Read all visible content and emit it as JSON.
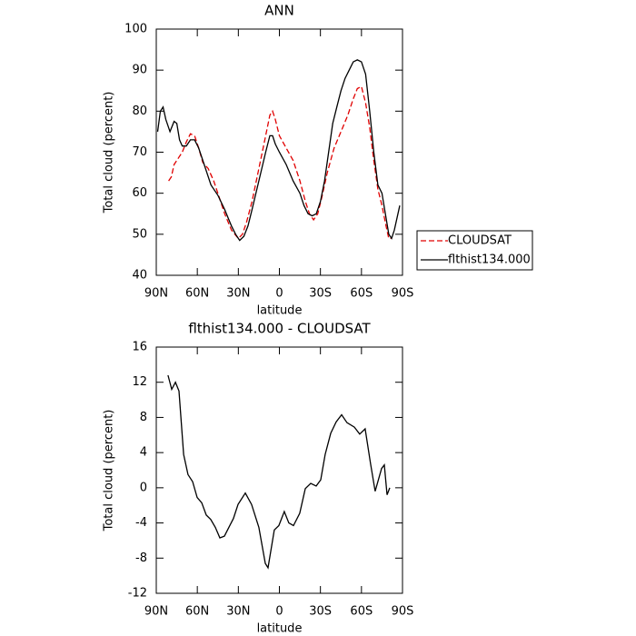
{
  "chart_data": [
    {
      "type": "line",
      "title": "ANN",
      "x_label": "latitude",
      "y_label": "Total cloud (percent)",
      "xlim": [
        90,
        -90
      ],
      "xticks": [
        {
          "value": 90,
          "label": "90N"
        },
        {
          "value": 60,
          "label": "60N"
        },
        {
          "value": 30,
          "label": "30N"
        },
        0,
        {
          "value": -30,
          "label": "30S"
        },
        {
          "value": -60,
          "label": "60S"
        },
        {
          "value": -90,
          "label": "90S"
        }
      ],
      "ylim": [
        40,
        100
      ],
      "yticks": [
        40,
        50,
        60,
        70,
        80,
        90,
        100
      ],
      "legend": "outside right",
      "series": [
        {
          "name": "CLOUDSAT",
          "color": "#e00000",
          "dash": true,
          "x": [
            81,
            79,
            77,
            74,
            71,
            68,
            65,
            62,
            59,
            56,
            52,
            48,
            44,
            40,
            35,
            30,
            27,
            24,
            20,
            15,
            10,
            7,
            5,
            3,
            0,
            -5,
            -10,
            -15,
            -19,
            -22,
            -25,
            -28,
            -31,
            -35,
            -40,
            -45,
            -50,
            -54,
            -57,
            -60,
            -63,
            -66,
            -69,
            -72,
            -75,
            -78,
            -80,
            -82
          ],
          "values": [
            63,
            64,
            67,
            68.5,
            70,
            72.5,
            74.5,
            74,
            71,
            67.5,
            66,
            63,
            59,
            55,
            51,
            49,
            50,
            53,
            58,
            66,
            74,
            79,
            80,
            78,
            74,
            71,
            68,
            63,
            58,
            55,
            53.5,
            55,
            59,
            65,
            71,
            75,
            79,
            83,
            85.5,
            86,
            82,
            76,
            68,
            61,
            57,
            52,
            49,
            49
          ]
        },
        {
          "name": "flthist134.000",
          "color": "#000000",
          "dash": false,
          "x": [
            89,
            87,
            85,
            83,
            80,
            77,
            75,
            73,
            71,
            68,
            65,
            62,
            59,
            56,
            53,
            50,
            45,
            40,
            35,
            32,
            29,
            26,
            23,
            20,
            15,
            10,
            7,
            5,
            3,
            0,
            -5,
            -10,
            -15,
            -18,
            -21,
            -24,
            -27,
            -30,
            -33,
            -36,
            -39,
            -42,
            -45,
            -48,
            -51,
            -54,
            -57,
            -60,
            -63,
            -66,
            -69,
            -72,
            -75,
            -78,
            -80,
            -82,
            -84,
            -88
          ],
          "values": [
            75,
            80,
            81,
            78,
            75,
            77.5,
            77,
            73,
            71.5,
            71.5,
            73,
            73,
            71,
            68,
            65,
            62,
            59.5,
            56,
            52,
            50,
            48.5,
            49.5,
            52,
            56,
            63,
            70,
            74,
            74,
            72,
            70,
            67,
            63,
            60,
            57,
            55,
            54.5,
            55,
            58,
            63,
            70,
            77,
            81,
            85,
            88,
            90,
            92,
            92.5,
            92,
            89,
            80,
            70,
            62,
            60,
            54,
            50,
            49,
            51,
            57
          ]
        }
      ]
    },
    {
      "type": "line",
      "title": "flthist134.000 - CLOUDSAT",
      "x_label": "latitude",
      "y_label": "Total cloud (percent)",
      "xlim": [
        90,
        -90
      ],
      "xticks": [
        {
          "value": 90,
          "label": "90N"
        },
        {
          "value": 60,
          "label": "60N"
        },
        {
          "value": 30,
          "label": "30N"
        },
        0,
        {
          "value": -30,
          "label": "30S"
        },
        {
          "value": -60,
          "label": "60S"
        },
        {
          "value": -90,
          "label": "90S"
        }
      ],
      "ylim": [
        -12,
        16
      ],
      "yticks": [
        -12,
        -8,
        -4,
        0,
        4,
        8,
        12,
        16
      ],
      "series": [
        {
          "color": "#000000",
          "dash": false,
          "x": [
            81.4,
            78.7,
            76,
            73.4,
            70,
            66.8,
            63.4,
            60.1,
            56.8,
            53.5,
            50.2,
            46.8,
            43.5,
            40.2,
            36.9,
            33.6,
            30.2,
            24.9,
            20.3,
            15,
            10.3,
            8.3,
            3.7,
            0.4,
            -3.6,
            -6.9,
            -10.3,
            -14.9,
            -18.9,
            -22.9,
            -26.9,
            -30.2,
            -33.5,
            -37.5,
            -41.5,
            -45.5,
            -49.4,
            -54.8,
            -58.7,
            -62.7,
            -66.7,
            -70,
            -72,
            -74.7,
            -76.7,
            -78.7,
            -80.7
          ],
          "values": [
            12.8,
            11.2,
            12,
            11,
            3.8,
            1.5,
            0.7,
            -1.1,
            -1.7,
            -3.1,
            -3.6,
            -4.5,
            -5.7,
            -5.5,
            -4.5,
            -3.5,
            -1.9,
            -0.6,
            -1.9,
            -4.5,
            -8.6,
            -9.1,
            -4.8,
            -4.3,
            -2.7,
            -4,
            -4.3,
            -2.9,
            -0.1,
            0.5,
            0.2,
            0.9,
            3.8,
            6.2,
            7.5,
            8.3,
            7.4,
            6.9,
            6.1,
            6.7,
            2.7,
            -0.4,
            0.7,
            2.2,
            2.6,
            -0.8,
            0
          ]
        }
      ]
    }
  ]
}
